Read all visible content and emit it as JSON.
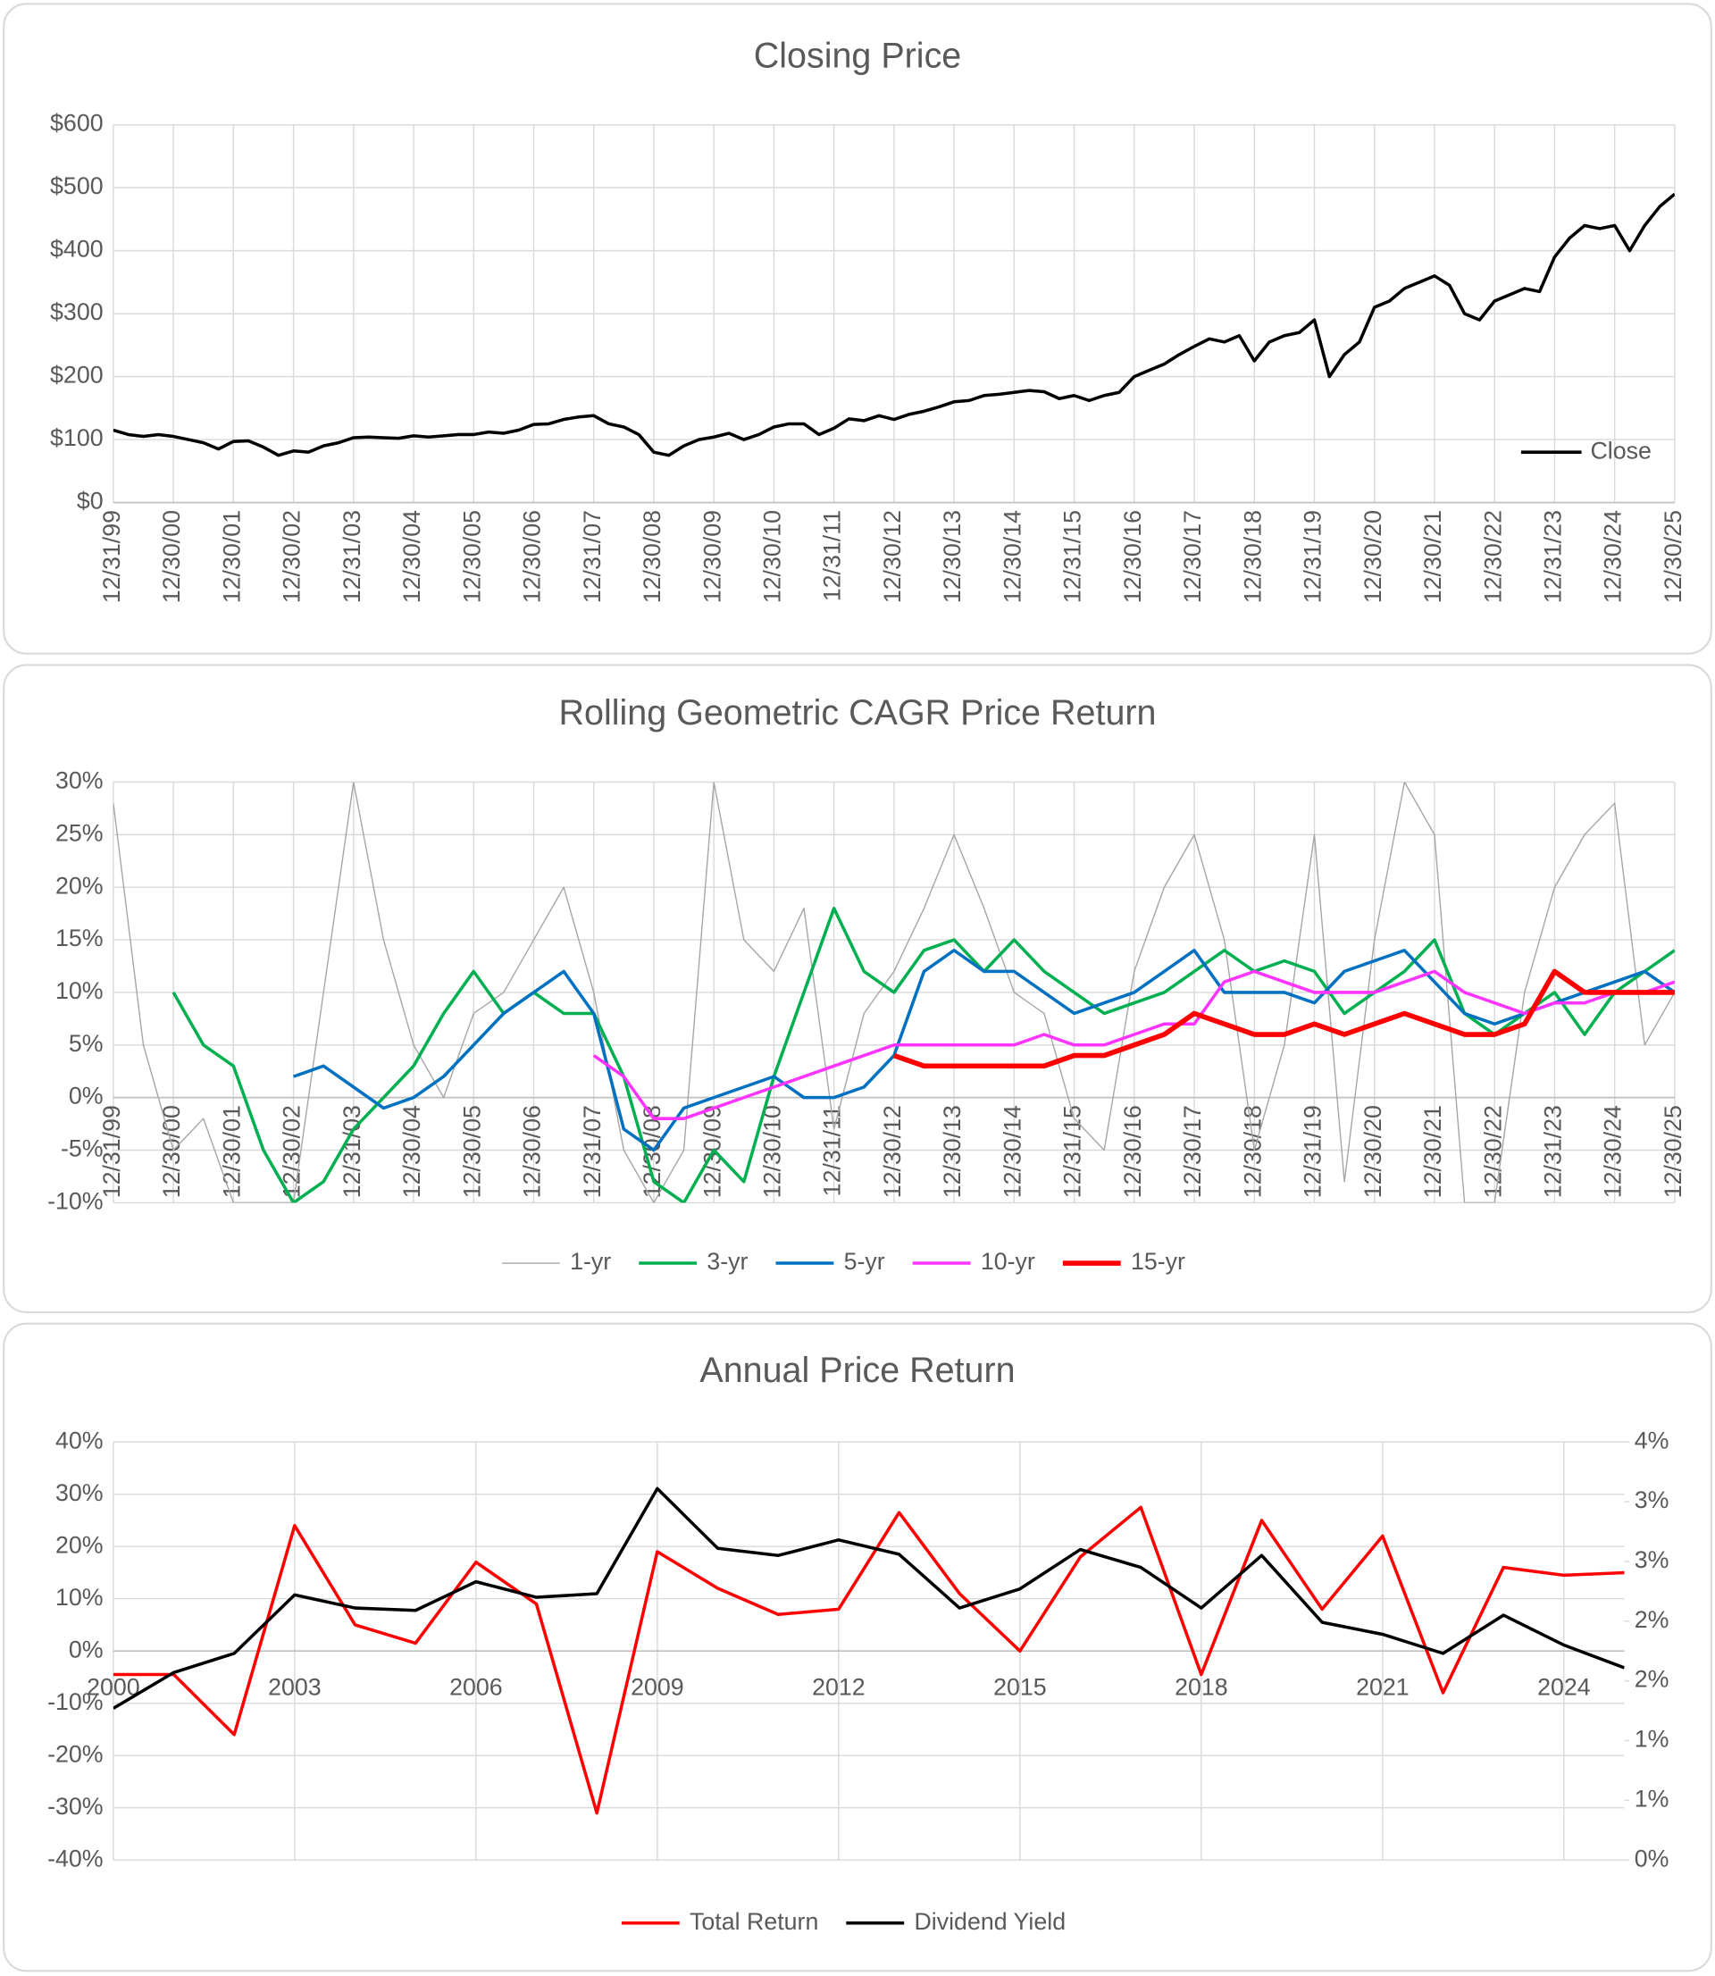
{
  "chart_data": [
    {
      "type": "line",
      "title": "Closing Price",
      "categories": [
        "12/31/99",
        null,
        null,
        null,
        "12/30/00",
        null,
        null,
        null,
        "12/30/01",
        null,
        null,
        null,
        "12/30/02",
        null,
        null,
        null,
        "12/31/03",
        null,
        null,
        null,
        "12/30/04",
        null,
        null,
        null,
        "12/30/05",
        null,
        null,
        null,
        "12/30/06",
        null,
        null,
        null,
        "12/31/07",
        null,
        null,
        null,
        "12/30/08",
        null,
        null,
        null,
        "12/30/09",
        null,
        null,
        null,
        "12/30/10",
        null,
        null,
        null,
        "12/31/11",
        null,
        null,
        null,
        "12/30/12",
        null,
        null,
        null,
        "12/30/13",
        null,
        null,
        null,
        "12/30/14",
        null,
        null,
        null,
        "12/31/15",
        null,
        null,
        null,
        "12/30/16",
        null,
        null,
        null,
        "12/30/17",
        null,
        null,
        null,
        "12/30/18",
        null,
        null,
        null,
        "12/31/19",
        null,
        null,
        null,
        "12/30/20",
        null,
        null,
        null,
        "12/30/21",
        null,
        null,
        null,
        "12/30/22",
        null,
        null,
        null,
        "12/31/23",
        null,
        null,
        null,
        "12/30/24",
        null,
        null,
        null,
        "12/30/25"
      ],
      "series": [
        {
          "name": "Close",
          "color": "#000000",
          "values": [
            115,
            108,
            105,
            108,
            105,
            100,
            95,
            85,
            97,
            98,
            88,
            75,
            82,
            80,
            90,
            95,
            103,
            104,
            103,
            102,
            106,
            104,
            106,
            108,
            108,
            112,
            110,
            115,
            124,
            125,
            132,
            136,
            138,
            125,
            120,
            108,
            80,
            75,
            90,
            100,
            104,
            110,
            100,
            108,
            120,
            125,
            125,
            108,
            118,
            133,
            130,
            138,
            132,
            140,
            145,
            152,
            160,
            162,
            170,
            172,
            175,
            178,
            176,
            165,
            170,
            162,
            170,
            175,
            200,
            210,
            220,
            235,
            248,
            260,
            255,
            265,
            225,
            255,
            265,
            270,
            290,
            200,
            235,
            255,
            310,
            320,
            340,
            350,
            360,
            345,
            300,
            290,
            320,
            330,
            340,
            335,
            390,
            420,
            440,
            435,
            440,
            400,
            440,
            470,
            490
          ]
        }
      ],
      "ylim": [
        0,
        600
      ],
      "yticks": [
        {
          "value": 0,
          "label": "$0"
        },
        {
          "value": 100,
          "label": "$100"
        },
        {
          "value": 200,
          "label": "$200"
        },
        {
          "value": 300,
          "label": "$300"
        },
        {
          "value": 400,
          "label": "$400"
        },
        {
          "value": 500,
          "label": "$500"
        },
        {
          "value": 600,
          "label": "$600"
        }
      ],
      "grid": true,
      "legend": "bottom-right"
    },
    {
      "type": "line",
      "title": "Rolling Geometric CAGR Price Return",
      "categories": [
        "12/31/99",
        null,
        "12/30/00",
        null,
        "12/30/01",
        null,
        "12/30/02",
        null,
        "12/31/03",
        null,
        "12/30/04",
        null,
        "12/30/05",
        null,
        "12/30/06",
        null,
        "12/31/07",
        null,
        "12/30/08",
        null,
        "12/30/09",
        null,
        "12/30/10",
        null,
        "12/31/11",
        null,
        "12/30/12",
        null,
        "12/30/13",
        null,
        "12/30/14",
        null,
        "12/31/15",
        null,
        "12/30/16",
        null,
        "12/30/17",
        null,
        "12/30/18",
        null,
        "12/31/19",
        null,
        "12/30/20",
        null,
        "12/30/21",
        null,
        "12/30/22",
        null,
        "12/31/23",
        null,
        "12/30/24",
        null,
        "12/30/25"
      ],
      "series": [
        {
          "name": "1-yr",
          "color": "#a6a6a6",
          "values": [
            28,
            5,
            -5,
            -2,
            -10,
            -10,
            -10,
            10,
            30,
            15,
            5,
            0,
            8,
            10,
            15,
            20,
            10,
            -5,
            -10,
            -5,
            30,
            15,
            12,
            18,
            -3,
            8,
            12,
            18,
            25,
            18,
            10,
            8,
            -2,
            -5,
            12,
            20,
            25,
            15,
            -5,
            5,
            25,
            -8,
            15,
            30,
            25,
            -10,
            -10,
            10,
            20,
            25,
            28,
            5,
            10
          ]
        },
        {
          "name": "3-yr",
          "color": "#00b050",
          "values": [
            null,
            null,
            10,
            5,
            3,
            -5,
            -10,
            -8,
            -3,
            0,
            3,
            8,
            12,
            8,
            10,
            8,
            8,
            2,
            -8,
            -10,
            -5,
            -8,
            2,
            10,
            18,
            12,
            10,
            14,
            15,
            12,
            15,
            12,
            10,
            8,
            9,
            10,
            12,
            14,
            12,
            13,
            12,
            8,
            10,
            12,
            15,
            8,
            6,
            8,
            10,
            6,
            10,
            12,
            14
          ]
        },
        {
          "name": "5-yr",
          "color": "#0070c0",
          "values": [
            null,
            null,
            null,
            null,
            null,
            null,
            2,
            3,
            1,
            -1,
            0,
            2,
            5,
            8,
            10,
            12,
            8,
            -3,
            -5,
            -1,
            0,
            1,
            2,
            0,
            0,
            1,
            4,
            12,
            14,
            12,
            12,
            10,
            8,
            9,
            10,
            12,
            14,
            10,
            10,
            10,
            9,
            12,
            13,
            14,
            11,
            8,
            7,
            8,
            9,
            10,
            11,
            12,
            10
          ]
        },
        {
          "name": "10-yr",
          "color": "#ff33ff",
          "values": [
            null,
            null,
            null,
            null,
            null,
            null,
            null,
            null,
            null,
            null,
            null,
            null,
            null,
            null,
            null,
            null,
            4,
            2,
            -2,
            -2,
            -1,
            0,
            1,
            2,
            3,
            4,
            5,
            5,
            5,
            5,
            5,
            6,
            5,
            5,
            6,
            7,
            7,
            11,
            12,
            11,
            10,
            10,
            10,
            11,
            12,
            10,
            9,
            8,
            9,
            9,
            10,
            10,
            11
          ]
        },
        {
          "name": "15-yr",
          "color": "#ff0000",
          "values": [
            null,
            null,
            null,
            null,
            null,
            null,
            null,
            null,
            null,
            null,
            null,
            null,
            null,
            null,
            null,
            null,
            null,
            null,
            null,
            null,
            null,
            null,
            null,
            null,
            null,
            null,
            4,
            3,
            3,
            3,
            3,
            3,
            4,
            4,
            5,
            6,
            8,
            7,
            6,
            6,
            7,
            6,
            7,
            8,
            7,
            6,
            6,
            7,
            12,
            10,
            10,
            10,
            10
          ]
        }
      ],
      "ylim": [
        -10,
        30
      ],
      "yticks": [
        {
          "value": -10,
          "label": "-10%"
        },
        {
          "value": -5,
          "label": "-5%"
        },
        {
          "value": 0,
          "label": "0%"
        },
        {
          "value": 5,
          "label": "5%"
        },
        {
          "value": 10,
          "label": "10%"
        },
        {
          "value": 15,
          "label": "15%"
        },
        {
          "value": 20,
          "label": "20%"
        },
        {
          "value": 25,
          "label": "25%"
        },
        {
          "value": 30,
          "label": "30%"
        }
      ],
      "grid": true,
      "legend": "bottom"
    },
    {
      "type": "line",
      "title": "Annual Price Return",
      "x": [
        2000,
        2001,
        2002,
        2003,
        2004,
        2005,
        2006,
        2007,
        2008,
        2009,
        2010,
        2011,
        2012,
        2013,
        2014,
        2015,
        2016,
        2017,
        2018,
        2019,
        2020,
        2021,
        2022,
        2023,
        2024,
        2025
      ],
      "series": [
        {
          "name": "Total Return",
          "color": "#ff0000",
          "values": [
            -4.5,
            -4.5,
            -16,
            24,
            5,
            1.5,
            17,
            9,
            -31,
            19,
            12,
            7,
            8,
            26.5,
            11,
            0,
            18,
            27.5,
            -4.5,
            25,
            8,
            22,
            -8,
            16,
            14.5,
            15
          ]
        },
        {
          "name": "Dividend Yield",
          "color": "#000000",
          "axis": "y2",
          "values": [
            1.27,
            1.57,
            1.73,
            2.22,
            2.11,
            2.09,
            2.33,
            2.2,
            2.23,
            3.11,
            2.61,
            2.55,
            2.68,
            2.56,
            2.11,
            2.27,
            2.6,
            2.45,
            2.11,
            2.55,
            1.99,
            1.89,
            1.73,
            2.05,
            1.8,
            1.61
          ]
        }
      ],
      "xlim": [
        2000,
        2025
      ],
      "xticks": [
        2000,
        2003,
        2006,
        2009,
        2012,
        2015,
        2018,
        2021,
        2024
      ],
      "ylim": [
        -40,
        40
      ],
      "yticks": [
        {
          "value": -40,
          "label": "-40%"
        },
        {
          "value": -30,
          "label": "-30%"
        },
        {
          "value": -20,
          "label": "-20%"
        },
        {
          "value": -10,
          "label": "-10%"
        },
        {
          "value": 0,
          "label": "0%"
        },
        {
          "value": 10,
          "label": "10%"
        },
        {
          "value": 20,
          "label": "20%"
        },
        {
          "value": 30,
          "label": "30%"
        },
        {
          "value": 40,
          "label": "40%"
        }
      ],
      "y2lim": [
        0,
        3.5
      ],
      "y2ticks": [
        {
          "value": 0,
          "label": "0%"
        },
        {
          "value": 0.5,
          "label": "1%"
        },
        {
          "value": 1,
          "label": "1%"
        },
        {
          "value": 1.5,
          "label": "2%"
        },
        {
          "value": 2,
          "label": "2%"
        },
        {
          "value": 2.5,
          "label": "3%"
        },
        {
          "value": 3,
          "label": "3%"
        },
        {
          "value": 3.5,
          "label": "4%"
        }
      ],
      "grid": true,
      "legend": "bottom"
    }
  ]
}
